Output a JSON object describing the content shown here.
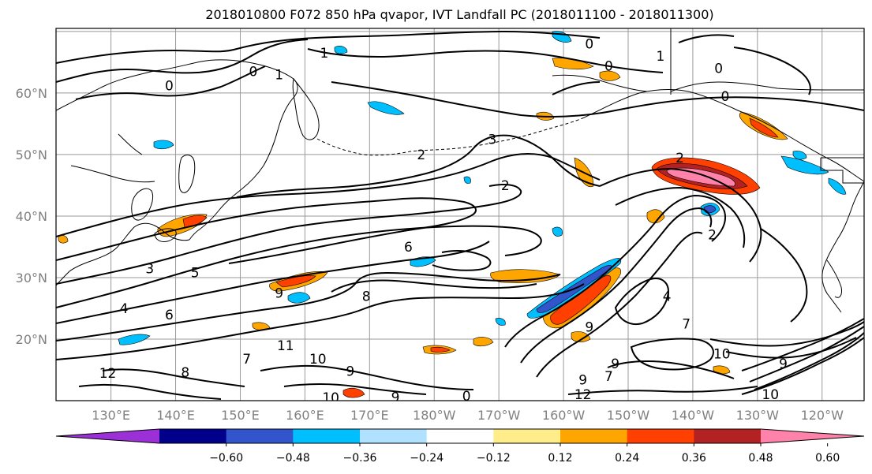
{
  "title": "2018010800 F072 850 hPa qvapor, IVT Landfall PC (2018011100 - 2018011300)",
  "map": {
    "lat_ticks": [
      "60°N",
      "50°N",
      "40°N",
      "30°N",
      "20°N"
    ],
    "lon_ticks": [
      "130°E",
      "140°E",
      "150°E",
      "160°E",
      "170°E",
      "180°W",
      "170°W",
      "160°W",
      "150°W",
      "140°W",
      "130°W",
      "120°W"
    ],
    "contour_labels": [
      {
        "text": "0",
        "lon": 152,
        "lat": 63.5
      },
      {
        "text": "1",
        "lon": 156,
        "lat": 63.0
      },
      {
        "text": "0",
        "lon": 139,
        "lat": 61.2
      },
      {
        "text": "1",
        "lon": 163,
        "lat": 66.5
      },
      {
        "text": "1",
        "lon": 215,
        "lat": 66.0
      },
      {
        "text": "0",
        "lon": 207,
        "lat": 64.4
      },
      {
        "text": "0",
        "lon": 224,
        "lat": 64.0
      },
      {
        "text": "0",
        "lon": 204,
        "lat": 68.0
      },
      {
        "text": "0",
        "lon": 225,
        "lat": 59.5
      },
      {
        "text": "3",
        "lon": 189,
        "lat": 52.5
      },
      {
        "text": "2",
        "lon": 178,
        "lat": 50.0
      },
      {
        "text": "2",
        "lon": 191,
        "lat": 45.0
      },
      {
        "text": "2",
        "lon": 218,
        "lat": 49.5
      },
      {
        "text": "6",
        "lon": 176,
        "lat": 35.0
      },
      {
        "text": "2",
        "lon": 223,
        "lat": 37.0
      },
      {
        "text": "5",
        "lon": 143,
        "lat": 30.8
      },
      {
        "text": "3",
        "lon": 136,
        "lat": 31.5
      },
      {
        "text": "4",
        "lon": 132,
        "lat": 25.0
      },
      {
        "text": "6",
        "lon": 139,
        "lat": 24.0
      },
      {
        "text": "8",
        "lon": 169.5,
        "lat": 27.0
      },
      {
        "text": "9",
        "lon": 156,
        "lat": 27.5
      },
      {
        "text": "4",
        "lon": 216,
        "lat": 27.0
      },
      {
        "text": "9",
        "lon": 204,
        "lat": 22.0
      },
      {
        "text": "7",
        "lon": 219,
        "lat": 22.5
      },
      {
        "text": "12",
        "lon": 129.5,
        "lat": 14.5
      },
      {
        "text": "8",
        "lon": 141.5,
        "lat": 14.6
      },
      {
        "text": "10",
        "lon": 162,
        "lat": 16.8
      },
      {
        "text": "9",
        "lon": 167,
        "lat": 14.8
      },
      {
        "text": "7",
        "lon": 151,
        "lat": 16.8
      },
      {
        "text": "11",
        "lon": 157,
        "lat": 19.0
      },
      {
        "text": "9",
        "lon": 203,
        "lat": 13.4
      },
      {
        "text": "7",
        "lon": 207,
        "lat": 14.0
      },
      {
        "text": "9",
        "lon": 208,
        "lat": 16.0
      },
      {
        "text": "12",
        "lon": 203,
        "lat": 11.0
      },
      {
        "text": "10",
        "lon": 224.5,
        "lat": 17.6
      },
      {
        "text": "10",
        "lon": 232,
        "lat": 11.0
      },
      {
        "text": "9",
        "lon": 234,
        "lat": 16.0
      },
      {
        "text": "10",
        "lon": 164,
        "lat": 10.5
      },
      {
        "text": "9",
        "lon": 174,
        "lat": 10.6
      },
      {
        "text": "0",
        "lon": 185,
        "lat": 10.8
      }
    ]
  },
  "colorbar": {
    "colors": [
      "#9b30d6",
      "#00008b",
      "#3355cc",
      "#00bfff",
      "#b0e2ff",
      "#ffffff",
      "#ffed8a",
      "#ffa500",
      "#ff4000",
      "#b22222",
      "#ff82ab"
    ],
    "tick_labels": [
      "−0.60",
      "−0.48",
      "−0.36",
      "−0.24",
      "−0.12",
      "0.12",
      "0.24",
      "0.36",
      "0.48",
      "0.60"
    ]
  }
}
